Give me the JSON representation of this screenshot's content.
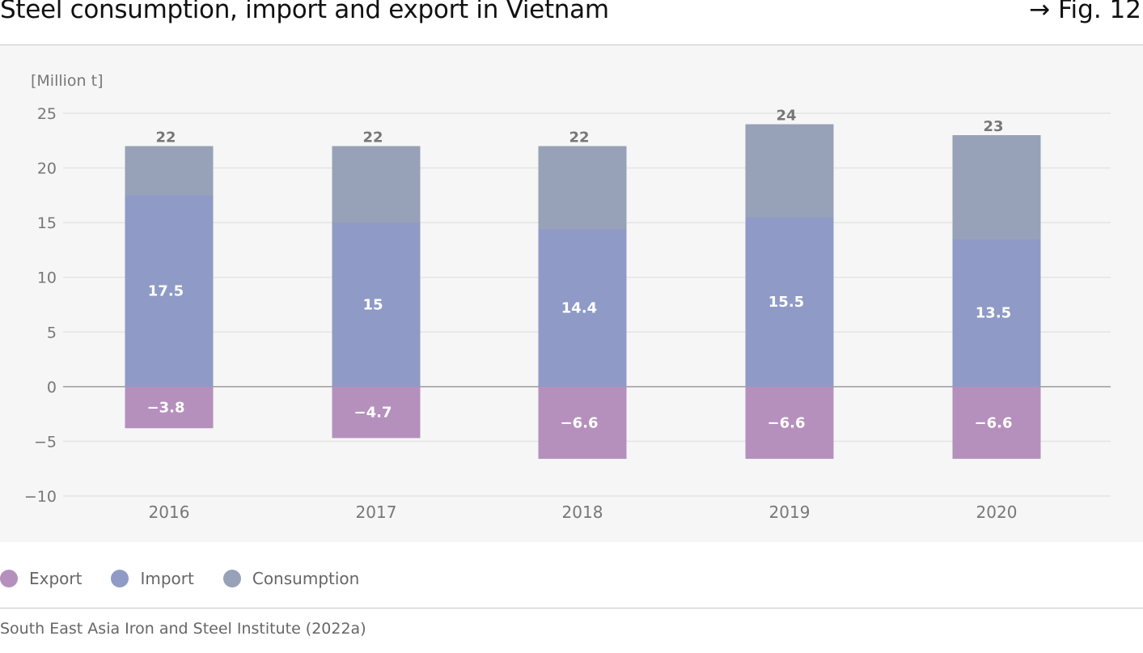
{
  "header": {
    "title": "Steel consumption, import and export in Vietnam",
    "fig_ref": "→ Fig. 12"
  },
  "source": "South East Asia Iron and Steel Institute (2022a)",
  "colors": {
    "export": "#b590bd",
    "import": "#8f9bc6",
    "consumption": "#97a2b8"
  },
  "legend": [
    {
      "label": "Export",
      "color": "#b590bd"
    },
    {
      "label": "Import",
      "color": "#8f9bc6"
    },
    {
      "label": "Consumption",
      "color": "#97a2b8"
    }
  ],
  "chart_data": {
    "type": "bar",
    "unit_label": "[Million t]",
    "categories": [
      "2016",
      "2017",
      "2018",
      "2019",
      "2020"
    ],
    "series": [
      {
        "name": "Export",
        "values": [
          -3.8,
          -4.7,
          -6.6,
          -6.6,
          -6.6
        ],
        "labels": [
          "−3.8",
          "−4.7",
          "−6.6",
          "−6.6",
          "−6.6"
        ]
      },
      {
        "name": "Import",
        "values": [
          17.5,
          15,
          14.4,
          15.5,
          13.5
        ],
        "labels": [
          "17.5",
          "15",
          "14.4",
          "15.5",
          "13.5"
        ]
      },
      {
        "name": "Consumption",
        "values": [
          22,
          22,
          22,
          24,
          23
        ],
        "labels": [
          "22",
          "22",
          "22",
          "24",
          "23"
        ]
      }
    ],
    "yticks": [
      25,
      20,
      15,
      10,
      5,
      0,
      -5,
      -10
    ],
    "ytick_labels": [
      "25",
      "20",
      "15",
      "10",
      "5",
      "0",
      "−5",
      "−10"
    ],
    "ylim": [
      -10,
      25
    ],
    "grid": true,
    "legend_position": "bottom-left"
  }
}
